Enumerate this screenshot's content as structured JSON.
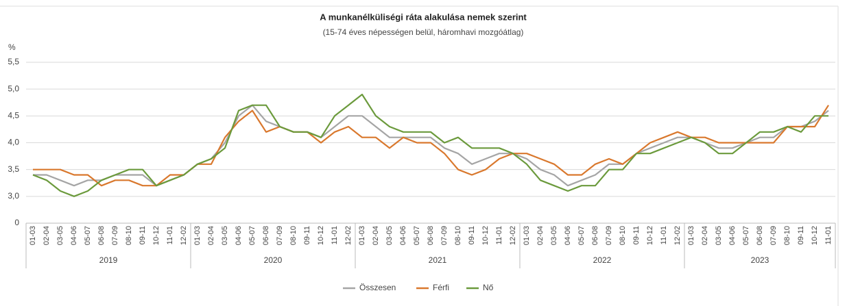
{
  "chart_data": {
    "type": "line",
    "title": "A munkanélküliségi ráta alakulása nemek szerint",
    "subtitle": "(15-74 éves népességen belül, háromhavi mozgóátlag)",
    "y_label": "%",
    "categories": [
      "01-03",
      "02-04",
      "03-05",
      "04-06",
      "05-07",
      "06-08",
      "07-09",
      "08-10",
      "09-11",
      "10-12",
      "11-01",
      "12-02",
      "01-03",
      "02-04",
      "03-05",
      "04-06",
      "05-07",
      "06-08",
      "07-09",
      "08-10",
      "09-11",
      "10-12",
      "11-01",
      "12-02",
      "01-03",
      "02-04",
      "03-05",
      "04-06",
      "05-07",
      "06-08",
      "07-09",
      "08-10",
      "09-11",
      "10-12",
      "11-01",
      "12-02",
      "01-03",
      "02-04",
      "03-05",
      "04-06",
      "05-07",
      "06-08",
      "07-09",
      "08-10",
      "09-11",
      "10-12",
      "11-01",
      "12-02",
      "01-03",
      "02-04",
      "03-05",
      "04-06",
      "05-07",
      "06-08",
      "07-09",
      "08-10",
      "09-11",
      "10-12",
      "11-01"
    ],
    "groups": [
      {
        "label": "2019",
        "size": 12
      },
      {
        "label": "2020",
        "size": 12
      },
      {
        "label": "2021",
        "size": 12
      },
      {
        "label": "2022",
        "size": 12
      },
      {
        "label": "2023",
        "size": 11
      }
    ],
    "series": [
      {
        "name": "Összesen",
        "color": "#a5a5a5",
        "values": [
          3.4,
          3.4,
          3.3,
          3.2,
          3.3,
          3.3,
          3.4,
          3.4,
          3.4,
          3.2,
          3.3,
          3.4,
          3.6,
          3.7,
          4.0,
          4.5,
          4.7,
          4.4,
          4.3,
          4.2,
          4.2,
          4.1,
          4.3,
          4.5,
          4.5,
          4.3,
          4.1,
          4.1,
          4.1,
          4.1,
          3.9,
          3.8,
          3.6,
          3.7,
          3.8,
          3.8,
          3.7,
          3.5,
          3.4,
          3.2,
          3.3,
          3.4,
          3.6,
          3.6,
          3.8,
          3.9,
          4.0,
          4.1,
          4.1,
          4.0,
          3.9,
          3.9,
          4.0,
          4.1,
          4.1,
          4.3,
          4.3,
          4.4,
          4.6
        ]
      },
      {
        "name": "Férfi",
        "color": "#d9782d",
        "values": [
          3.5,
          3.5,
          3.5,
          3.4,
          3.4,
          3.2,
          3.3,
          3.3,
          3.2,
          3.2,
          3.4,
          3.4,
          3.6,
          3.6,
          4.1,
          4.4,
          4.6,
          4.2,
          4.3,
          4.2,
          4.2,
          4.0,
          4.2,
          4.3,
          4.1,
          4.1,
          3.9,
          4.1,
          4.0,
          4.0,
          3.8,
          3.5,
          3.4,
          3.5,
          3.7,
          3.8,
          3.8,
          3.7,
          3.6,
          3.4,
          3.4,
          3.6,
          3.7,
          3.6,
          3.8,
          4.0,
          4.1,
          4.2,
          4.1,
          4.1,
          4.0,
          4.0,
          4.0,
          4.0,
          4.0,
          4.3,
          4.3,
          4.3,
          4.7
        ]
      },
      {
        "name": "Nő",
        "color": "#6b9a3c",
        "values": [
          3.4,
          3.3,
          3.1,
          3.0,
          3.1,
          3.3,
          3.4,
          3.5,
          3.5,
          3.2,
          3.3,
          3.4,
          3.6,
          3.7,
          3.9,
          4.6,
          4.7,
          4.7,
          4.3,
          4.2,
          4.2,
          4.1,
          4.5,
          4.7,
          4.9,
          4.5,
          4.3,
          4.2,
          4.2,
          4.2,
          4.0,
          4.1,
          3.9,
          3.9,
          3.9,
          3.8,
          3.6,
          3.3,
          3.2,
          3.1,
          3.2,
          3.2,
          3.5,
          3.5,
          3.8,
          3.8,
          3.9,
          4.0,
          4.1,
          4.0,
          3.8,
          3.8,
          4.0,
          4.2,
          4.2,
          4.3,
          4.2,
          4.5,
          4.5
        ]
      }
    ],
    "ylim": [
      0,
      5.5
    ],
    "y_axis_break": true,
    "yticks": [
      0,
      {
        "value": 3,
        "label": "3,0"
      },
      {
        "value": 3.5,
        "label": "3,5"
      },
      {
        "value": 4,
        "label": "4,0"
      },
      {
        "value": 4.5,
        "label": "4,5"
      },
      {
        "value": 5,
        "label": "5,0"
      },
      {
        "value": 5.5,
        "label": "5,5"
      }
    ],
    "grid": true,
    "legend": "bottom"
  }
}
